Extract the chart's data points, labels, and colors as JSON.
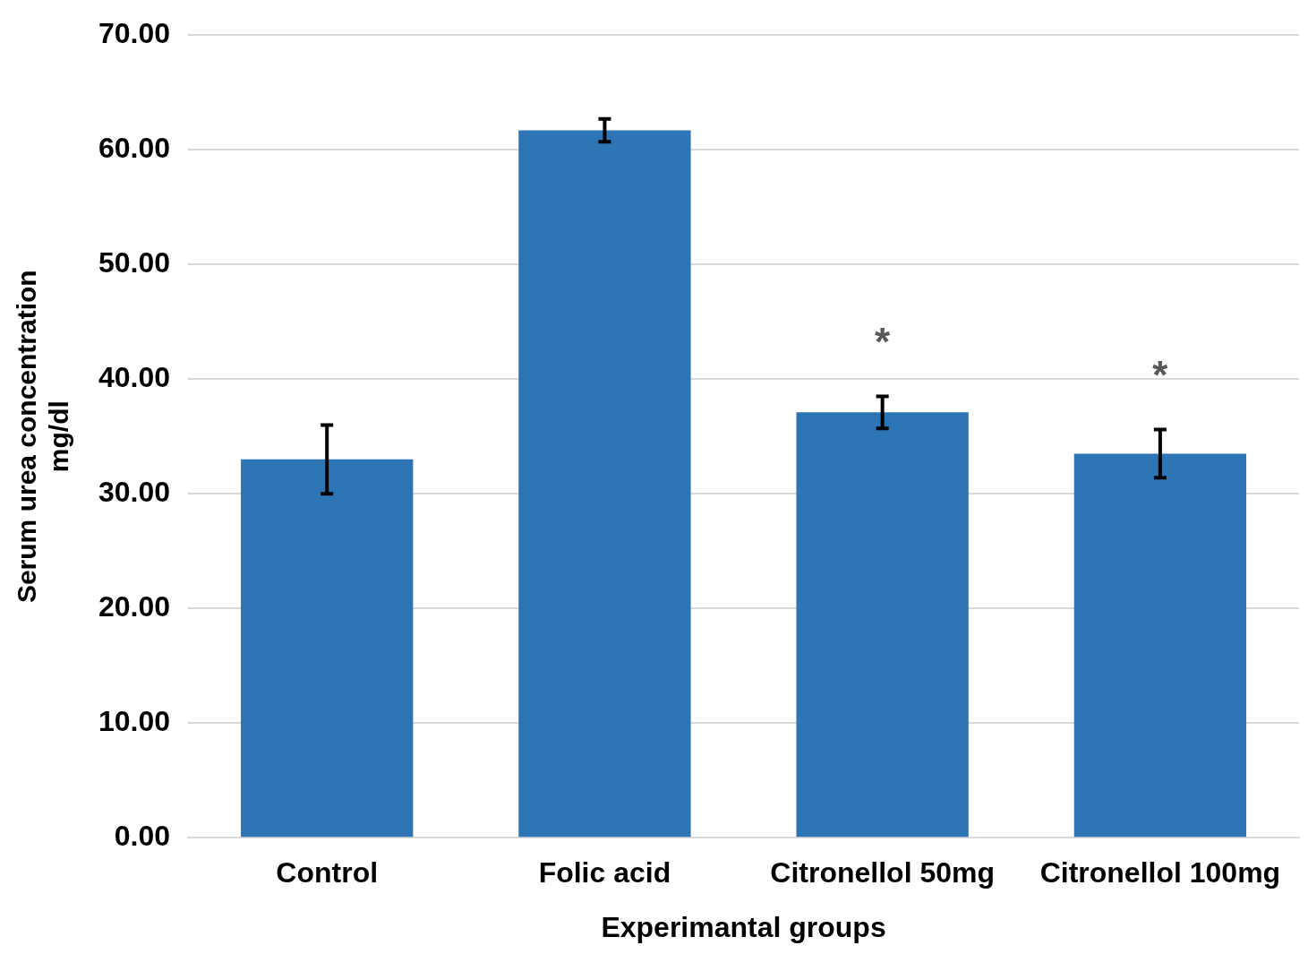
{
  "chart_data": {
    "type": "bar",
    "xlabel": "Experimantal groups",
    "ylabel": "Serum urea concentration\nmg/dl",
    "categories": [
      "Control",
      "Folic acid",
      "Citronellol 50mg",
      "Citronellol 100mg"
    ],
    "values": [
      33.0,
      61.7,
      37.1,
      33.5
    ],
    "errors": [
      3.0,
      1.0,
      1.4,
      2.1
    ],
    "color": "#2e75b6",
    "ylim": [
      0,
      70
    ],
    "yticks": [
      {
        "value": 0,
        "label": "0.00"
      },
      {
        "value": 10,
        "label": "10.00"
      },
      {
        "value": 20,
        "label": "20.00"
      },
      {
        "value": 30,
        "label": "30.00"
      },
      {
        "value": 40,
        "label": "40.00"
      },
      {
        "value": 50,
        "label": "50.00"
      },
      {
        "value": 60,
        "label": "60.00"
      },
      {
        "value": 70,
        "label": "70.00"
      }
    ],
    "grid": "y",
    "value_labels": [
      null,
      null,
      "*",
      "*"
    ]
  }
}
